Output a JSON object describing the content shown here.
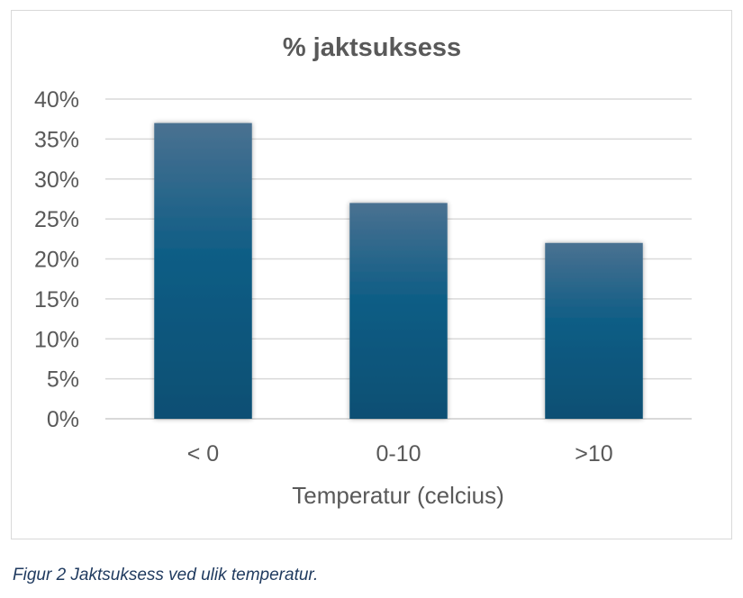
{
  "chart_data": {
    "type": "bar",
    "title": "% jaktsuksess",
    "categories": [
      "< 0",
      "0-10",
      ">10"
    ],
    "values": [
      0.37,
      0.27,
      0.22
    ],
    "xlabel": "Temperatur (celcius)",
    "ylabel": "",
    "ylim": [
      0,
      0.4
    ],
    "y_ticks": [
      {
        "value": 0,
        "label": "0%"
      },
      {
        "value": 0.05,
        "label": "5%"
      },
      {
        "value": 0.1,
        "label": "10%"
      },
      {
        "value": 0.15,
        "label": "15%"
      },
      {
        "value": 0.2,
        "label": "20%"
      },
      {
        "value": 0.25,
        "label": "25%"
      },
      {
        "value": 0.3,
        "label": "30%"
      },
      {
        "value": 0.35,
        "label": "35%"
      },
      {
        "value": 0.4,
        "label": "40%"
      }
    ],
    "grid": true,
    "legend": "none",
    "colors": {
      "bar_top": "#4a7191",
      "bar_mid": "#0e5d85",
      "bar_bottom": "#0b4f73",
      "grid": "#d9d9d9",
      "text": "#595959"
    }
  },
  "caption": "Figur 2 Jaktsuksess ved ulik temperatur."
}
